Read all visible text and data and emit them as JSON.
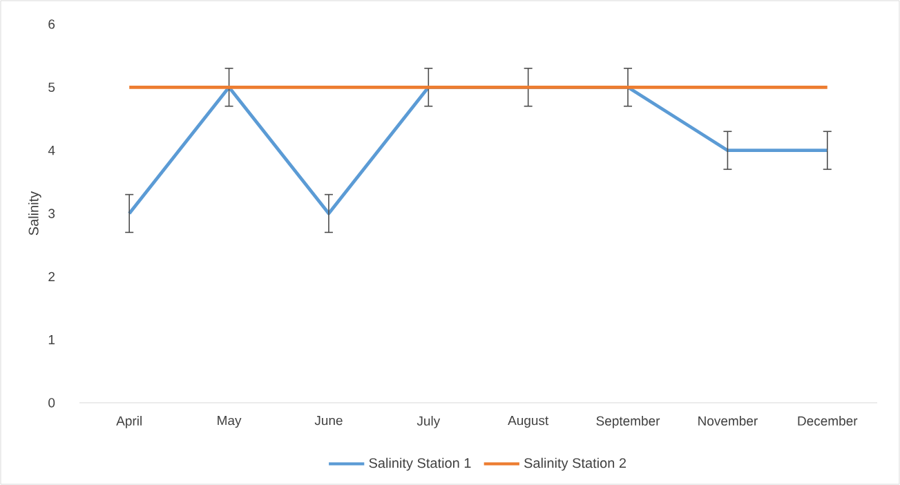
{
  "chart_data": {
    "type": "line",
    "ylabel": "Salinity",
    "categories": [
      "April",
      "May",
      "June",
      "July",
      "August",
      "September",
      "November",
      "December"
    ],
    "series": [
      {
        "name": "Salinity Station 1",
        "color": "#5b9bd5",
        "values": [
          3,
          5,
          3,
          5,
          5,
          5,
          4,
          4
        ],
        "errors": [
          0.3,
          0.3,
          0.3,
          0.3,
          0.3,
          0.3,
          0.3,
          0.3
        ]
      },
      {
        "name": "Salinity Station 2",
        "color": "#ed7d31",
        "values": [
          5,
          5,
          5,
          5,
          5,
          5,
          5,
          5
        ]
      }
    ],
    "ylim": [
      0,
      6
    ],
    "yticks": [
      0,
      1,
      2,
      3,
      4,
      5,
      6
    ],
    "legend": "bottom",
    "marker": "none",
    "line_style": "solid"
  }
}
